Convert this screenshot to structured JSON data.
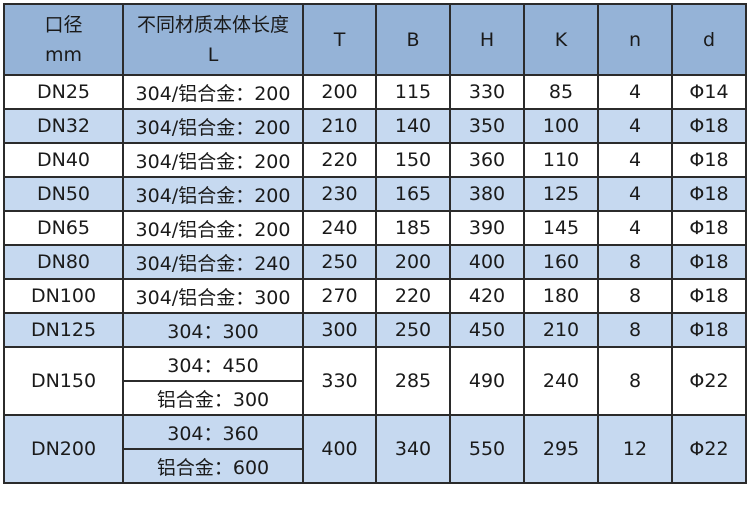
{
  "header": {
    "size_line1": "口径",
    "size_line2": "mm",
    "length_line1": "不同材质本体长度",
    "length_line2": "L",
    "T": "T",
    "B": "B",
    "H": "H",
    "K": "K",
    "n": "n",
    "d": "d"
  },
  "colors": {
    "header_bg": "#95b3d7",
    "alt_row_bg": "#c6d9f0",
    "border": "#2b2b2b"
  },
  "rows": [
    {
      "size": "DN25",
      "L": "304/铝合金：200",
      "T": "200",
      "B": "115",
      "H": "330",
      "K": "85",
      "n": "4",
      "d": "Φ14"
    },
    {
      "size": "DN32",
      "L": "304/铝合金：200",
      "T": "210",
      "B": "140",
      "H": "350",
      "K": "100",
      "n": "4",
      "d": "Φ18"
    },
    {
      "size": "DN40",
      "L": "304/铝合金：200",
      "T": "220",
      "B": "150",
      "H": "360",
      "K": "110",
      "n": "4",
      "d": "Φ18"
    },
    {
      "size": "DN50",
      "L": "304/铝合金：200",
      "T": "230",
      "B": "165",
      "H": "380",
      "K": "125",
      "n": "4",
      "d": "Φ18"
    },
    {
      "size": "DN65",
      "L": "304/铝合金：200",
      "T": "240",
      "B": "185",
      "H": "390",
      "K": "145",
      "n": "4",
      "d": "Φ18"
    },
    {
      "size": "DN80",
      "L": "304/铝合金：240",
      "T": "250",
      "B": "200",
      "H": "400",
      "K": "160",
      "n": "8",
      "d": "Φ18"
    },
    {
      "size": "DN100",
      "L": "304/铝合金：300",
      "T": "270",
      "B": "220",
      "H": "420",
      "K": "180",
      "n": "8",
      "d": "Φ18"
    },
    {
      "size": "DN125",
      "L": "304：300",
      "T": "300",
      "B": "250",
      "H": "450",
      "K": "210",
      "n": "8",
      "d": "Φ18"
    },
    {
      "size": "DN150",
      "L": "304：450",
      "L2": "铝合金：300",
      "T": "330",
      "B": "285",
      "H": "490",
      "K": "240",
      "n": "8",
      "d": "Φ22"
    },
    {
      "size": "DN200",
      "L": "304：360",
      "L2": "铝合金：600",
      "T": "400",
      "B": "340",
      "H": "550",
      "K": "295",
      "n": "12",
      "d": "Φ22"
    }
  ]
}
